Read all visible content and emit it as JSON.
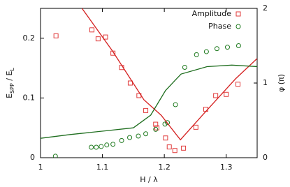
{
  "chart_data": {
    "type": "scatter",
    "xlabel": "H / λ",
    "ylabel": [
      "E",
      "SPP",
      " / E",
      "L"
    ],
    "y2label": "φ (π)",
    "xlim": [
      1,
      1.35
    ],
    "xticks": [
      1,
      1.1,
      1.2,
      1.3
    ],
    "ylim": [
      0,
      0.25
    ],
    "yticks": [
      0,
      0.1,
      0.2
    ],
    "y2lim": [
      0,
      2
    ],
    "y2ticks": [
      0,
      1,
      2
    ],
    "legend": "upper right",
    "series": [
      {
        "name": "Amplitude",
        "kind": "points",
        "marker": "square",
        "color": "#e03a3a",
        "x": [
          1.025,
          1.083,
          1.093,
          1.105,
          1.117,
          1.131,
          1.145,
          1.159,
          1.17,
          1.186,
          1.188,
          1.202,
          1.208,
          1.217,
          1.231,
          1.251,
          1.267,
          1.283,
          1.3,
          1.319
        ],
        "values": [
          0.204,
          0.214,
          0.199,
          0.202,
          0.175,
          0.151,
          0.125,
          0.104,
          0.079,
          0.056,
          0.05,
          0.033,
          0.018,
          0.012,
          0.016,
          0.051,
          0.081,
          0.104,
          0.106,
          0.123
        ]
      },
      {
        "name": "Phase",
        "kind": "points",
        "marker": "circle",
        "color": "#1f7a1f",
        "axis": "y2",
        "x": [
          1.024,
          1.082,
          1.09,
          1.098,
          1.107,
          1.117,
          1.131,
          1.144,
          1.158,
          1.17,
          1.186,
          1.201,
          1.205,
          1.218,
          1.233,
          1.252,
          1.268,
          1.285,
          1.302,
          1.32
        ],
        "values": [
          0.02,
          0.14,
          0.14,
          0.15,
          0.17,
          0.18,
          0.23,
          0.27,
          0.29,
          0.32,
          0.38,
          0.45,
          0.47,
          0.71,
          1.21,
          1.38,
          1.42,
          1.46,
          1.48,
          1.5
        ]
      },
      {
        "kind": "line",
        "color": "#d42020",
        "x": [
          1.067,
          1.116,
          1.167,
          1.195,
          1.226,
          1.264,
          1.315,
          1.35
        ],
        "values": [
          0.25,
          0.179,
          0.097,
          0.071,
          0.03,
          0.074,
          0.132,
          0.166
        ]
      },
      {
        "kind": "line",
        "color": "#1f6e1f",
        "axis": "y2",
        "x": [
          1.0,
          1.048,
          1.105,
          1.15,
          1.178,
          1.202,
          1.227,
          1.269,
          1.309,
          1.35
        ],
        "values": [
          0.26,
          0.31,
          0.36,
          0.4,
          0.57,
          0.9,
          1.12,
          1.22,
          1.24,
          1.22
        ]
      }
    ]
  }
}
